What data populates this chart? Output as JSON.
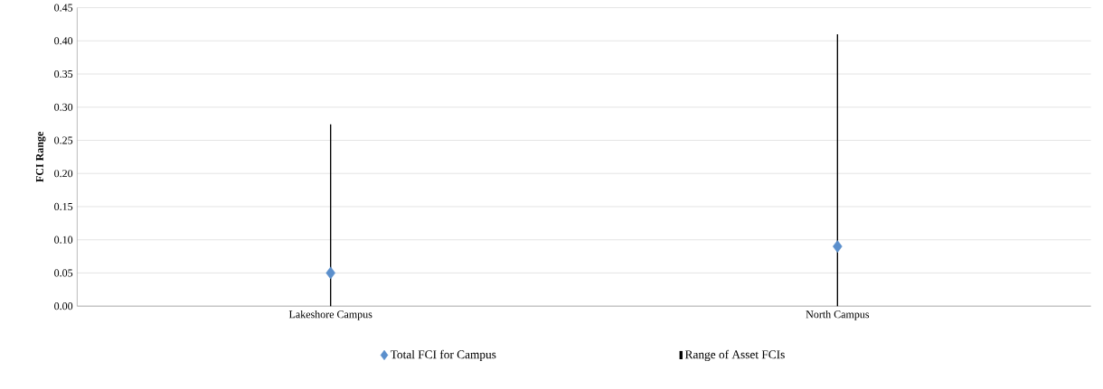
{
  "chart_data": {
    "type": "scatter",
    "ylabel": "FCI Range",
    "categories": [
      "Lakeshore Campus",
      "North Campus"
    ],
    "series": [
      {
        "name": "Total FCI for Campus",
        "color": "#5b8fcc",
        "values": [
          0.05,
          0.09
        ],
        "marker": "diamond"
      },
      {
        "name": "Range of Asset FCIs",
        "type": "bar",
        "color": "#000000",
        "base": [
          0,
          0
        ],
        "values": [
          0.274,
          0.41
        ]
      }
    ],
    "ylim": [
      0,
      0.45
    ],
    "yticks": [
      {
        "value": 0,
        "label": "0.00"
      },
      {
        "value": 0.05,
        "label": "0.05"
      },
      {
        "value": 0.1,
        "label": "0.10"
      },
      {
        "value": 0.15,
        "label": "0.15"
      },
      {
        "value": 0.2,
        "label": "0.20"
      },
      {
        "value": 0.25,
        "label": "0.25"
      },
      {
        "value": 0.3,
        "label": "0.30"
      },
      {
        "value": 0.35,
        "label": "0.35"
      },
      {
        "value": 0.4,
        "label": "0.40"
      },
      {
        "value": 0.45,
        "label": "0.45"
      }
    ],
    "grid": "y",
    "legend": "bottom"
  }
}
